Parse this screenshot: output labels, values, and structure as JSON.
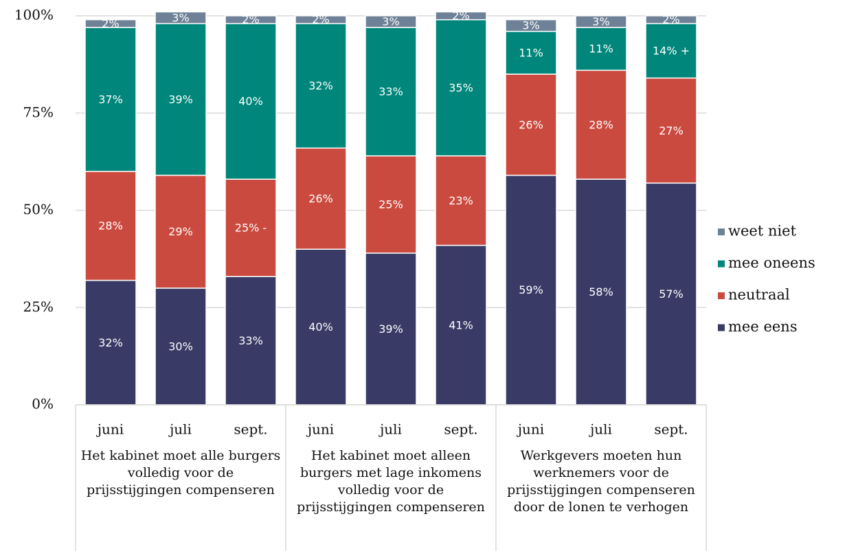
{
  "chart_data": {
    "type": "stacked-bar",
    "categories": [
      "juni",
      "juli",
      "sept.",
      "juni",
      "juli",
      "sept.",
      "juni",
      "juli",
      "sept."
    ],
    "groups": [
      "Het kabinet moet alle burgers volledig voor de prijsstijgingen compenseren",
      "Het kabinet moet alleen burgers met lage inkomens volledig voor de prijsstijgingen compenseren",
      "Werkgevers moeten hun werknemers voor de prijsstijgingen compenseren door de lonen te verhogen"
    ],
    "series": [
      {
        "name": "mee eens",
        "color": "#393b66",
        "values": [
          32,
          30,
          33,
          40,
          39,
          41,
          59,
          58,
          57
        ],
        "value_labels": [
          "32%",
          "30%",
          "33%",
          "40%",
          "39%",
          "41%",
          "59%",
          "58%",
          "57%"
        ]
      },
      {
        "name": "neutraal",
        "color": "#cb4a3f",
        "values": [
          28,
          29,
          25,
          26,
          25,
          23,
          26,
          28,
          27
        ],
        "value_labels": [
          "28%",
          "29%",
          "25% -",
          "26%",
          "25%",
          "23%",
          "26%",
          "28%",
          "27%"
        ]
      },
      {
        "name": "mee oneens",
        "color": "#00867a",
        "values": [
          37,
          39,
          40,
          32,
          33,
          35,
          11,
          11,
          14
        ],
        "value_labels": [
          "37%",
          "39%",
          "40%",
          "32%",
          "33%",
          "35%",
          "11%",
          "11%",
          "14% +"
        ]
      },
      {
        "name": "weet niet",
        "color": "#6e8196",
        "values": [
          2,
          3,
          2,
          2,
          3,
          2,
          3,
          3,
          2
        ],
        "value_labels": [
          "2%",
          "3%",
          "2%",
          "2%",
          "3%",
          "2%",
          "3%",
          "3%",
          "2%"
        ]
      }
    ],
    "ylim": [
      0,
      100
    ],
    "yticks": [
      {
        "value": 0,
        "label": "0%"
      },
      {
        "value": 25,
        "label": "25%"
      },
      {
        "value": 50,
        "label": "50%"
      },
      {
        "value": 75,
        "label": "75%"
      },
      {
        "value": 100,
        "label": "100%"
      }
    ],
    "grid": true,
    "legend": "right"
  }
}
